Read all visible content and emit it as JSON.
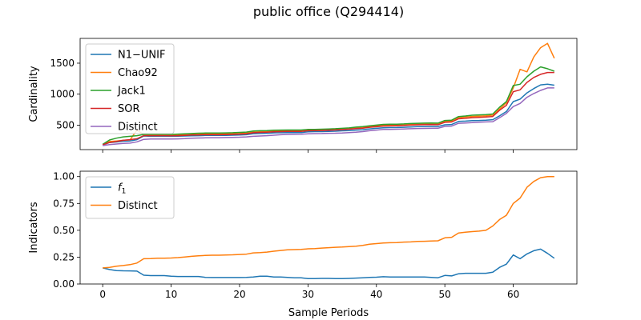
{
  "title": "public office (Q294414)",
  "xlabel": "Sample Periods",
  "chart_data": [
    {
      "type": "line",
      "ylabel": "Cardinality",
      "xlim": [
        -3.3,
        69.3
      ],
      "ylim": [
        105,
        1900
      ],
      "xticks": [
        0,
        10,
        20,
        30,
        40,
        50,
        60
      ],
      "yticks": [
        500,
        1000,
        1500
      ],
      "ytick_labels": [
        "500",
        "1000",
        "1500"
      ],
      "show_x_tick_labels": false,
      "legend": "upper-left",
      "series": [
        {
          "name": "N1−UNIF",
          "color": "#1f77b4",
          "values": [
            180,
            218,
            228,
            240,
            245,
            265,
            325,
            320,
            322,
            322,
            320,
            322,
            325,
            328,
            330,
            333,
            335,
            335,
            335,
            338,
            340,
            345,
            362,
            365,
            368,
            375,
            378,
            380,
            380,
            380,
            392,
            395,
            395,
            398,
            402,
            408,
            412,
            420,
            425,
            440,
            448,
            458,
            460,
            462,
            465,
            470,
            475,
            475,
            478,
            478,
            505,
            510,
            560,
            565,
            572,
            575,
            580,
            588,
            650,
            720,
            880,
            920,
            1020,
            1090,
            1150,
            1160,
            1145
          ]
        },
        {
          "name": "Chao92",
          "color": "#ff7f0e",
          "values": [
            185,
            235,
            245,
            255,
            262,
            420,
            345,
            338,
            340,
            340,
            338,
            340,
            343,
            347,
            352,
            355,
            357,
            358,
            360,
            362,
            365,
            370,
            388,
            392,
            395,
            402,
            406,
            410,
            410,
            410,
            420,
            425,
            426,
            428,
            432,
            438,
            444,
            455,
            462,
            478,
            488,
            500,
            502,
            504,
            507,
            512,
            518,
            520,
            522,
            520,
            560,
            565,
            620,
            630,
            640,
            645,
            650,
            660,
            760,
            860,
            1100,
            1400,
            1360,
            1600,
            1750,
            1820,
            1580
          ]
        },
        {
          "name": "Jack1",
          "color": "#2ca02c",
          "values": [
            190,
            260,
            290,
            310,
            320,
            330,
            350,
            352,
            352,
            352,
            350,
            355,
            360,
            365,
            370,
            372,
            372,
            372,
            375,
            378,
            382,
            388,
            405,
            410,
            412,
            418,
            420,
            422,
            422,
            422,
            430,
            432,
            434,
            438,
            442,
            448,
            455,
            468,
            475,
            490,
            500,
            512,
            514,
            516,
            520,
            526,
            530,
            532,
            534,
            532,
            575,
            580,
            638,
            648,
            660,
            665,
            670,
            680,
            790,
            880,
            1140,
            1160,
            1280,
            1370,
            1440,
            1410,
            1370
          ]
        },
        {
          "name": "SOR",
          "color": "#d62728",
          "values": [
            182,
            220,
            235,
            255,
            265,
            280,
            330,
            330,
            330,
            330,
            328,
            330,
            335,
            340,
            343,
            345,
            345,
            345,
            348,
            350,
            355,
            360,
            378,
            382,
            386,
            392,
            396,
            400,
            400,
            400,
            410,
            412,
            414,
            418,
            422,
            428,
            434,
            444,
            450,
            465,
            474,
            485,
            487,
            490,
            494,
            500,
            505,
            506,
            508,
            506,
            545,
            550,
            602,
            610,
            620,
            625,
            630,
            640,
            740,
            820,
            1040,
            1070,
            1190,
            1270,
            1320,
            1350,
            1350
          ]
        },
        {
          "name": "Distinct",
          "color": "#9467bd",
          "values": [
            170,
            185,
            195,
            205,
            210,
            230,
            270,
            275,
            275,
            275,
            275,
            278,
            282,
            288,
            292,
            295,
            297,
            298,
            300,
            302,
            305,
            310,
            320,
            325,
            330,
            338,
            345,
            350,
            352,
            354,
            360,
            363,
            365,
            368,
            370,
            374,
            380,
            386,
            395,
            410,
            420,
            430,
            432,
            434,
            438,
            442,
            446,
            447,
            448,
            450,
            480,
            485,
            530,
            535,
            540,
            548,
            552,
            556,
            620,
            690,
            800,
            850,
            950,
            1010,
            1060,
            1100,
            1100
          ]
        }
      ]
    },
    {
      "type": "line",
      "ylabel": "Indicators",
      "xlim": [
        -3.3,
        69.3
      ],
      "ylim": [
        0.0,
        1.05
      ],
      "xticks": [
        0,
        10,
        20,
        30,
        40,
        50,
        60
      ],
      "xtick_labels": [
        "0",
        "10",
        "20",
        "30",
        "40",
        "50",
        "60"
      ],
      "yticks": [
        0.0,
        0.25,
        0.5,
        0.75,
        1.0
      ],
      "ytick_labels": [
        "0.00",
        "0.25",
        "0.50",
        "0.75",
        "1.00"
      ],
      "show_x_tick_labels": true,
      "legend": "upper-left",
      "series": [
        {
          "name": "f1",
          "name_main": "f",
          "name_sub": "1",
          "color": "#1f77b4",
          "values": [
            0.15,
            0.135,
            0.125,
            0.123,
            0.122,
            0.12,
            0.082,
            0.078,
            0.078,
            0.078,
            0.072,
            0.07,
            0.07,
            0.07,
            0.07,
            0.062,
            0.06,
            0.06,
            0.06,
            0.06,
            0.06,
            0.062,
            0.065,
            0.072,
            0.072,
            0.065,
            0.065,
            0.062,
            0.058,
            0.058,
            0.05,
            0.05,
            0.052,
            0.052,
            0.05,
            0.05,
            0.052,
            0.055,
            0.058,
            0.062,
            0.063,
            0.068,
            0.065,
            0.065,
            0.065,
            0.065,
            0.065,
            0.065,
            0.062,
            0.058,
            0.08,
            0.075,
            0.095,
            0.1,
            0.1,
            0.1,
            0.1,
            0.11,
            0.155,
            0.185,
            0.27,
            0.235,
            0.28,
            0.31,
            0.325,
            0.285,
            0.24
          ]
        },
        {
          "name": "Distinct",
          "color": "#ff7f0e",
          "values": [
            0.15,
            0.155,
            0.165,
            0.172,
            0.18,
            0.195,
            0.235,
            0.237,
            0.24,
            0.24,
            0.242,
            0.246,
            0.252,
            0.258,
            0.262,
            0.266,
            0.268,
            0.268,
            0.27,
            0.272,
            0.275,
            0.278,
            0.29,
            0.293,
            0.297,
            0.305,
            0.312,
            0.318,
            0.32,
            0.322,
            0.328,
            0.33,
            0.334,
            0.338,
            0.342,
            0.344,
            0.348,
            0.352,
            0.36,
            0.37,
            0.376,
            0.382,
            0.384,
            0.386,
            0.39,
            0.392,
            0.396,
            0.398,
            0.4,
            0.402,
            0.43,
            0.435,
            0.475,
            0.482,
            0.488,
            0.492,
            0.5,
            0.54,
            0.6,
            0.64,
            0.75,
            0.8,
            0.9,
            0.955,
            0.99,
            1.0,
            1.0
          ]
        }
      ]
    }
  ]
}
